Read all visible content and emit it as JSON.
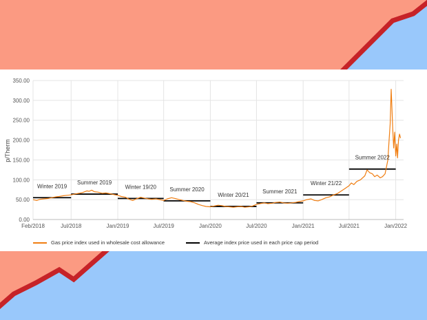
{
  "colors": {
    "background_red": "#fb9a82",
    "background_blue": "#99c8fb",
    "band_stroke": "#c62328",
    "gas_line": "#f07d10",
    "cap_line": "#000000",
    "grid": "#e4e4e4"
  },
  "chart_data": {
    "type": "line",
    "ylabel": "p/Therm",
    "xlabel": "",
    "title": "",
    "ylim": [
      0,
      350
    ],
    "yticks": [
      "0.00",
      "50.00",
      "100.00",
      "150.00",
      "200.00",
      "250.00",
      "300.00",
      "350.00"
    ],
    "xlim": [
      "2018-02",
      "2022-02"
    ],
    "xticks": [
      {
        "x": "2018-02",
        "label": "Feb/2018"
      },
      {
        "x": "2018-07",
        "label": "Jul/2018"
      },
      {
        "x": "2019-01",
        "label": "Jan/2019"
      },
      {
        "x": "2019-07",
        "label": "Jul/2019"
      },
      {
        "x": "2020-01",
        "label": "Jan/2020"
      },
      {
        "x": "2020-07",
        "label": "Jul/2020"
      },
      {
        "x": "2021-01",
        "label": "Jan/2021"
      },
      {
        "x": "2021-07",
        "label": "Jul/2021"
      },
      {
        "x": "2022-01",
        "label": "Jan/2022"
      }
    ],
    "grid": true,
    "legend_position": "bottom",
    "series": [
      {
        "name": "Gas price index used in wholesale cost allowance",
        "color": "#f07d10",
        "points": [
          [
            "2018-02-01",
            50
          ],
          [
            "2018-02-15",
            48
          ],
          [
            "2018-03-01",
            51
          ],
          [
            "2018-03-15",
            52
          ],
          [
            "2018-04-01",
            53
          ],
          [
            "2018-04-15",
            55
          ],
          [
            "2018-05-01",
            57
          ],
          [
            "2018-05-15",
            58
          ],
          [
            "2018-06-01",
            60
          ],
          [
            "2018-06-15",
            61
          ],
          [
            "2018-07-01",
            62
          ],
          [
            "2018-07-15",
            64
          ],
          [
            "2018-08-01",
            66
          ],
          [
            "2018-08-15",
            68
          ],
          [
            "2018-09-01",
            72
          ],
          [
            "2018-09-10",
            71
          ],
          [
            "2018-09-20",
            74
          ],
          [
            "2018-10-01",
            70
          ],
          [
            "2018-10-15",
            69
          ],
          [
            "2018-11-01",
            66
          ],
          [
            "2018-11-15",
            67
          ],
          [
            "2018-12-01",
            65
          ],
          [
            "2018-12-15",
            63
          ],
          [
            "2019-01-01",
            61
          ],
          [
            "2019-01-15",
            58
          ],
          [
            "2019-02-01",
            56
          ],
          [
            "2019-02-15",
            51
          ],
          [
            "2019-03-01",
            48
          ],
          [
            "2019-03-15",
            52
          ],
          [
            "2019-04-01",
            56
          ],
          [
            "2019-04-15",
            54
          ],
          [
            "2019-05-01",
            52
          ],
          [
            "2019-05-15",
            51
          ],
          [
            "2019-06-01",
            52
          ],
          [
            "2019-06-15",
            50
          ],
          [
            "2019-07-01",
            48
          ],
          [
            "2019-07-15",
            52
          ],
          [
            "2019-08-01",
            55
          ],
          [
            "2019-08-15",
            53
          ],
          [
            "2019-09-01",
            50
          ],
          [
            "2019-09-15",
            48
          ],
          [
            "2019-10-01",
            46
          ],
          [
            "2019-10-15",
            45
          ],
          [
            "2019-11-01",
            42
          ],
          [
            "2019-11-15",
            38
          ],
          [
            "2019-12-01",
            35
          ],
          [
            "2019-12-15",
            33
          ],
          [
            "2020-01-01",
            32
          ],
          [
            "2020-01-15",
            34
          ],
          [
            "2020-02-01",
            36
          ],
          [
            "2020-02-15",
            35
          ],
          [
            "2020-03-01",
            33
          ],
          [
            "2020-03-15",
            32
          ],
          [
            "2020-04-01",
            31
          ],
          [
            "2020-04-15",
            32
          ],
          [
            "2020-05-01",
            33
          ],
          [
            "2020-05-15",
            31
          ],
          [
            "2020-06-01",
            32
          ],
          [
            "2020-06-15",
            34
          ],
          [
            "2020-07-01",
            38
          ],
          [
            "2020-07-15",
            40
          ],
          [
            "2020-08-01",
            42
          ],
          [
            "2020-08-15",
            40
          ],
          [
            "2020-09-01",
            41
          ],
          [
            "2020-09-15",
            43
          ],
          [
            "2020-10-01",
            44
          ],
          [
            "2020-10-15",
            42
          ],
          [
            "2020-11-01",
            41
          ],
          [
            "2020-11-15",
            42
          ],
          [
            "2020-12-01",
            43
          ],
          [
            "2020-12-15",
            45
          ],
          [
            "2021-01-01",
            47
          ],
          [
            "2021-01-15",
            50
          ],
          [
            "2021-02-01",
            52
          ],
          [
            "2021-02-15",
            48
          ],
          [
            "2021-03-01",
            47
          ],
          [
            "2021-03-15",
            50
          ],
          [
            "2021-04-01",
            55
          ],
          [
            "2021-04-15",
            57
          ],
          [
            "2021-05-01",
            62
          ],
          [
            "2021-05-15",
            65
          ],
          [
            "2021-06-01",
            72
          ],
          [
            "2021-06-15",
            78
          ],
          [
            "2021-07-01",
            85
          ],
          [
            "2021-07-10",
            92
          ],
          [
            "2021-07-20",
            88
          ],
          [
            "2021-08-01",
            96
          ],
          [
            "2021-08-15",
            100
          ],
          [
            "2021-09-01",
            110
          ],
          [
            "2021-09-10",
            125
          ],
          [
            "2021-09-20",
            118
          ],
          [
            "2021-10-01",
            115
          ],
          [
            "2021-10-10",
            108
          ],
          [
            "2021-10-20",
            112
          ],
          [
            "2021-11-01",
            105
          ],
          [
            "2021-11-10",
            108
          ],
          [
            "2021-11-20",
            115
          ],
          [
            "2021-12-01",
            150
          ],
          [
            "2021-12-05",
            190
          ],
          [
            "2021-12-10",
            240
          ],
          [
            "2021-12-14",
            328
          ],
          [
            "2021-12-17",
            280
          ],
          [
            "2021-12-20",
            230
          ],
          [
            "2021-12-24",
            180
          ],
          [
            "2021-12-28",
            220
          ],
          [
            "2022-01-01",
            160
          ],
          [
            "2022-01-05",
            190
          ],
          [
            "2022-01-08",
            155
          ],
          [
            "2022-01-12",
            200
          ],
          [
            "2022-01-16",
            215
          ],
          [
            "2022-01-20",
            205
          ]
        ]
      },
      {
        "name": "Average index price used in each price cap period",
        "color": "#000000",
        "segments": [
          {
            "label": "Winter 2019",
            "start": "2018-02-01",
            "end": "2018-07-01",
            "value": 55
          },
          {
            "label": "Summer 2019",
            "start": "2018-07-01",
            "end": "2019-01-01",
            "value": 64
          },
          {
            "label": "Winter 19/20",
            "start": "2019-01-01",
            "end": "2019-07-01",
            "value": 53
          },
          {
            "label": "Summer 2020",
            "start": "2019-07-01",
            "end": "2020-01-01",
            "value": 47
          },
          {
            "label": "Winter 20/21",
            "start": "2020-01-01",
            "end": "2020-07-01",
            "value": 33
          },
          {
            "label": "Summer 2021",
            "start": "2020-07-01",
            "end": "2021-01-01",
            "value": 42
          },
          {
            "label": "Winter 21/22",
            "start": "2021-01-01",
            "end": "2021-07-01",
            "value": 62
          },
          {
            "label": "Summer 2022",
            "start": "2021-07-01",
            "end": "2022-01-01",
            "value": 127
          }
        ]
      }
    ]
  }
}
